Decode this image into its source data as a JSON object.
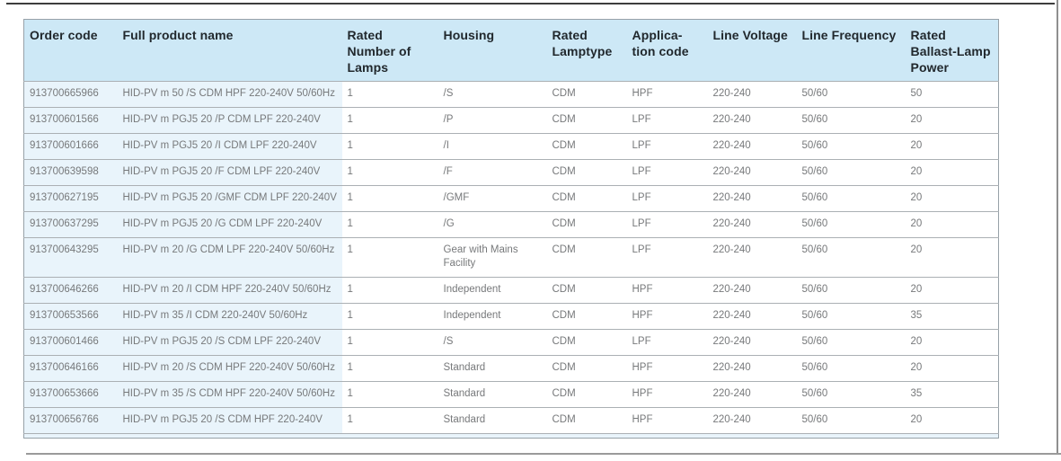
{
  "table": {
    "headers": [
      "Order code",
      "Full product name",
      "Rated Number of Lamps",
      "Housing",
      "Rated Lamptype",
      "Applica-tion code",
      "Line Voltage",
      "Line Frequency",
      "Rated Ballast-Lamp Power"
    ],
    "column_keys": [
      "order-code",
      "product-name",
      "lamps",
      "housing",
      "lamptype",
      "application-code",
      "line-voltage",
      "line-frequency",
      "ballast-power"
    ],
    "rows": [
      [
        "913700665966",
        "HID-PV m 50 /S CDM HPF 220-240V 50/60Hz",
        "1",
        "/S",
        "CDM",
        "HPF",
        "220-240",
        "50/60",
        "50"
      ],
      [
        "913700601566",
        "HID-PV m PGJ5 20 /P CDM LPF 220-240V",
        "1",
        "/P",
        "CDM",
        "LPF",
        "220-240",
        "50/60",
        "20"
      ],
      [
        "913700601666",
        "HID-PV m PGJ5 20 /I CDM LPF 220-240V",
        "1",
        "/I",
        "CDM",
        "LPF",
        "220-240",
        "50/60",
        "20"
      ],
      [
        "913700639598",
        "HID-PV m PGJ5 20 /F CDM LPF 220-240V",
        "1",
        "/F",
        "CDM",
        "LPF",
        "220-240",
        "50/60",
        "20"
      ],
      [
        "913700627195",
        "HID-PV m PGJ5 20 /GMF CDM LPF 220-240V",
        "1",
        "/GMF",
        "CDM",
        "LPF",
        "220-240",
        "50/60",
        "20"
      ],
      [
        "913700637295",
        "HID-PV m PGJ5 20 /G CDM LPF 220-240V",
        "1",
        "/G",
        "CDM",
        "LPF",
        "220-240",
        "50/60",
        "20"
      ],
      [
        "913700643295",
        "HID-PV m 20 /G CDM LPF 220-240V 50/60Hz",
        "1",
        "Gear with Mains Facility",
        "CDM",
        "LPF",
        "220-240",
        "50/60",
        "20"
      ],
      [
        "913700646266",
        "HID-PV m 20 /I CDM HPF 220-240V 50/60Hz",
        "1",
        "Independent",
        "CDM",
        "HPF",
        "220-240",
        "50/60",
        "20"
      ],
      [
        "913700653566",
        "HID-PV m 35 /I CDM 220-240V 50/60Hz",
        "1",
        "Independent",
        "CDM",
        "HPF",
        "220-240",
        "50/60",
        "35"
      ],
      [
        "913700601466",
        "HID-PV m PGJ5 20 /S CDM LPF 220-240V",
        "1",
        "/S",
        "CDM",
        "LPF",
        "220-240",
        "50/60",
        "20"
      ],
      [
        "913700646166",
        "HID-PV m 20 /S CDM HPF 220-240V 50/60Hz",
        "1",
        "Standard",
        "CDM",
        "HPF",
        "220-240",
        "50/60",
        "20"
      ],
      [
        "913700653666",
        "HID-PV m 35 /S CDM HPF 220-240V 50/60Hz",
        "1",
        "Standard",
        "CDM",
        "HPF",
        "220-240",
        "50/60",
        "35"
      ],
      [
        "913700656766",
        "HID-PV m PGJ5 20 /S CDM HPF 220-240V",
        "1",
        "Standard",
        "CDM",
        "HPF",
        "220-240",
        "50/60",
        "20"
      ]
    ],
    "colors": {
      "header_bg": "#cde8f6",
      "highlight_bg": "#e9f4fb",
      "header_text": "#21282d",
      "body_text": "#77797b",
      "grid_line": "#abb0b4",
      "outer_border": "#97a1a8",
      "rule_dark": "#3d3d3d",
      "rule_gray": "#8f8f8f",
      "rule_light": "#9a9a9a"
    }
  }
}
